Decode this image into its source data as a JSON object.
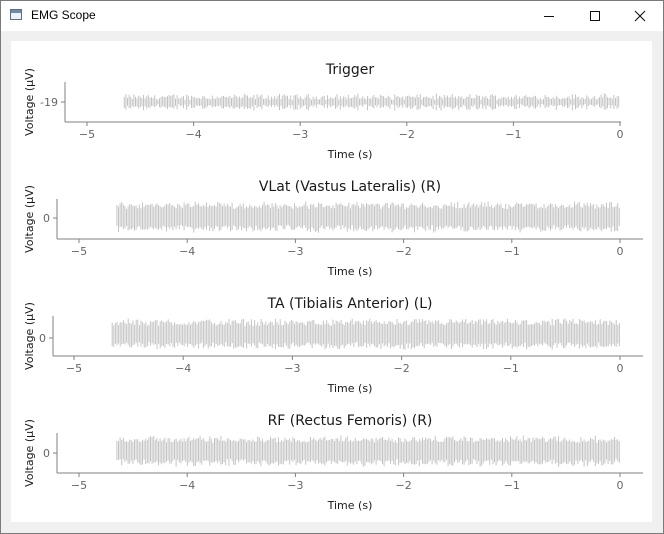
{
  "window": {
    "title": "EMG Scope",
    "buttons": {
      "minimize": "minimize",
      "maximize": "maximize",
      "close": "close"
    }
  },
  "colors": {
    "signal": "#c4c4c4",
    "axis": "#808080"
  },
  "plots": [
    {
      "title": "Trigger",
      "xlabel": "Time (s)",
      "ylabel": "Voltage (µV)",
      "xticks": [
        "-5",
        "-4",
        "-3",
        "-2",
        "-1",
        "0"
      ],
      "ytick": "-19",
      "xlim": [
        -5.2,
        0.1
      ],
      "signal_start": -4.65,
      "signal_end": 0,
      "amplitude": "low"
    },
    {
      "title": "VLat (Vastus Lateralis) (R)",
      "xlabel": "Time (s)",
      "ylabel": "Voltage (µV)",
      "xticks": [
        "-5",
        "-4",
        "-3",
        "-2",
        "-1",
        "0"
      ],
      "ytick": "0",
      "xlim": [
        -5.2,
        0.1
      ],
      "signal_start": -4.65,
      "signal_end": 0,
      "amplitude": "high"
    },
    {
      "title": "TA (Tibialis Anterior) (L)",
      "xlabel": "Time (s)",
      "ylabel": "Voltage (µV)",
      "xticks": [
        "-5",
        "-4",
        "-3",
        "-2",
        "-1",
        "0"
      ],
      "ytick": "0",
      "xlim": [
        -5.2,
        0.1
      ],
      "signal_start": -4.65,
      "signal_end": 0,
      "amplitude": "high"
    },
    {
      "title": "RF (Rectus Femoris) (R)",
      "xlabel": "Time (s)",
      "ylabel": "Voltage (µV)",
      "xticks": [
        "-5",
        "-4",
        "-3",
        "-2",
        "-1",
        "0"
      ],
      "ytick": "0",
      "xlim": [
        -5.2,
        0.1
      ],
      "signal_start": -4.65,
      "signal_end": 0,
      "amplitude": "high"
    }
  ]
}
